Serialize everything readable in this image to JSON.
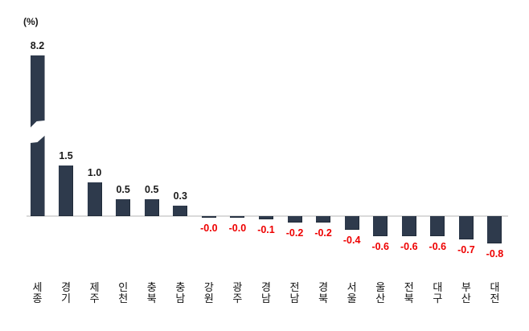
{
  "colors": {
    "background": "#ffffff",
    "bar": "#2e3a4c",
    "bar_border": "#1f2a38",
    "positive_label": "#1a1a1a",
    "negative_label": "#ee0000",
    "axis_line": "#dadada",
    "unit_label": "#1a1a1a",
    "category_label": "#111111"
  },
  "chart_data": {
    "type": "bar",
    "title": "",
    "unit": "(%)",
    "xlabel": "",
    "ylabel": "(%)",
    "categories": [
      "세종",
      "경기",
      "제주",
      "인천",
      "충북",
      "충남",
      "강원",
      "광주",
      "경남",
      "전남",
      "경북",
      "서울",
      "울산",
      "전북",
      "대구",
      "부산",
      "대전"
    ],
    "values": [
      8.2,
      1.5,
      1.0,
      0.5,
      0.5,
      0.3,
      -0.0,
      -0.0,
      -0.1,
      -0.2,
      -0.2,
      -0.4,
      -0.6,
      -0.6,
      -0.6,
      -0.7,
      -0.8
    ],
    "value_labels": [
      "8.2",
      "1.5",
      "1.0",
      "0.5",
      "0.5",
      "0.3",
      "-0.0",
      "-0.0",
      "-0.1",
      "-0.2",
      "-0.2",
      "-0.4",
      "-0.6",
      "-0.6",
      "-0.6",
      "-0.7",
      "-0.8"
    ],
    "axis_break": {
      "category": "세종",
      "value": 8.2,
      "style": "diagonal cut through tall bar"
    },
    "ylim": [
      -1.0,
      2.2
    ],
    "grid": false,
    "legend": false,
    "value_label_position": "positive above bar, negative below bar in red",
    "category_label_orientation": "vertical-stacked"
  }
}
